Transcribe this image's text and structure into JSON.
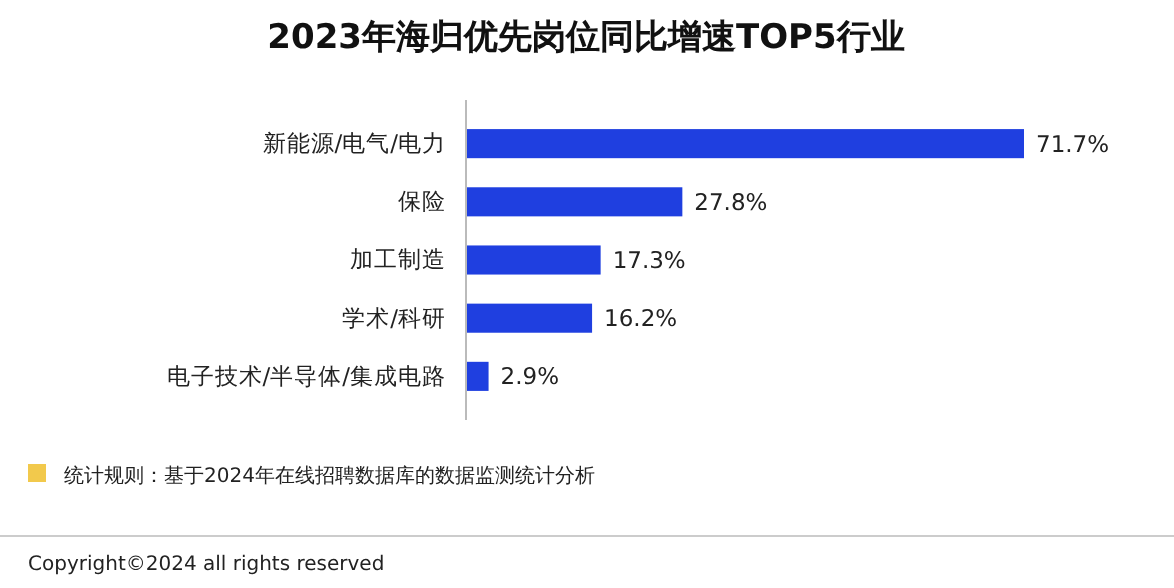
{
  "chart_data": {
    "type": "bar",
    "orientation": "horizontal",
    "title": "2023年海归优先岗位同比增速TOP5行业",
    "categories": [
      "新能源/电气/电力",
      "保险",
      "加工制造",
      "学术/科研",
      "电子技术/半导体/集成电路"
    ],
    "values": [
      71.7,
      27.8,
      17.3,
      16.2,
      2.9
    ],
    "value_labels": [
      "71.7%",
      "27.8%",
      "17.3%",
      "16.2%",
      "2.9%"
    ],
    "color": "#1f3fe0",
    "annotations": [
      "统计规则：基于2024年在线招聘数据库的数据监测统计分析",
      "Copyright©2024 all rights reserved"
    ]
  }
}
